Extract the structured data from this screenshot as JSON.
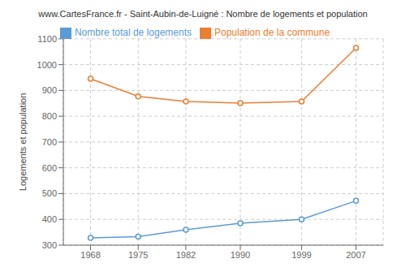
{
  "chart_data": {
    "type": "line",
    "title": "www.CartesFrance.fr - Saint-Aubin-de-Luigné : Nombre de logements et population",
    "ylabel": "Logements et population",
    "x": [
      1968,
      1975,
      1982,
      1990,
      1999,
      2007
    ],
    "series": [
      {
        "name": "Nombre total de logements",
        "color": "#5b9bd5",
        "values": [
          328,
          333,
          360,
          385,
          400,
          472
        ],
        "marker": "circle",
        "line_style": "solid"
      },
      {
        "name": "Population de la commune",
        "color": "#ed7d31",
        "values": [
          945,
          877,
          857,
          851,
          857,
          1065
        ],
        "marker": "circle",
        "line_style": "solid"
      }
    ],
    "xlim": [
      1964,
      2011
    ],
    "xticks": [
      1968,
      1975,
      1982,
      1990,
      1999,
      2007
    ],
    "ylim": [
      300,
      1100
    ],
    "yticks": [
      300,
      400,
      500,
      600,
      700,
      800,
      900,
      1000,
      1100
    ],
    "grid": true,
    "legend": "top"
  }
}
